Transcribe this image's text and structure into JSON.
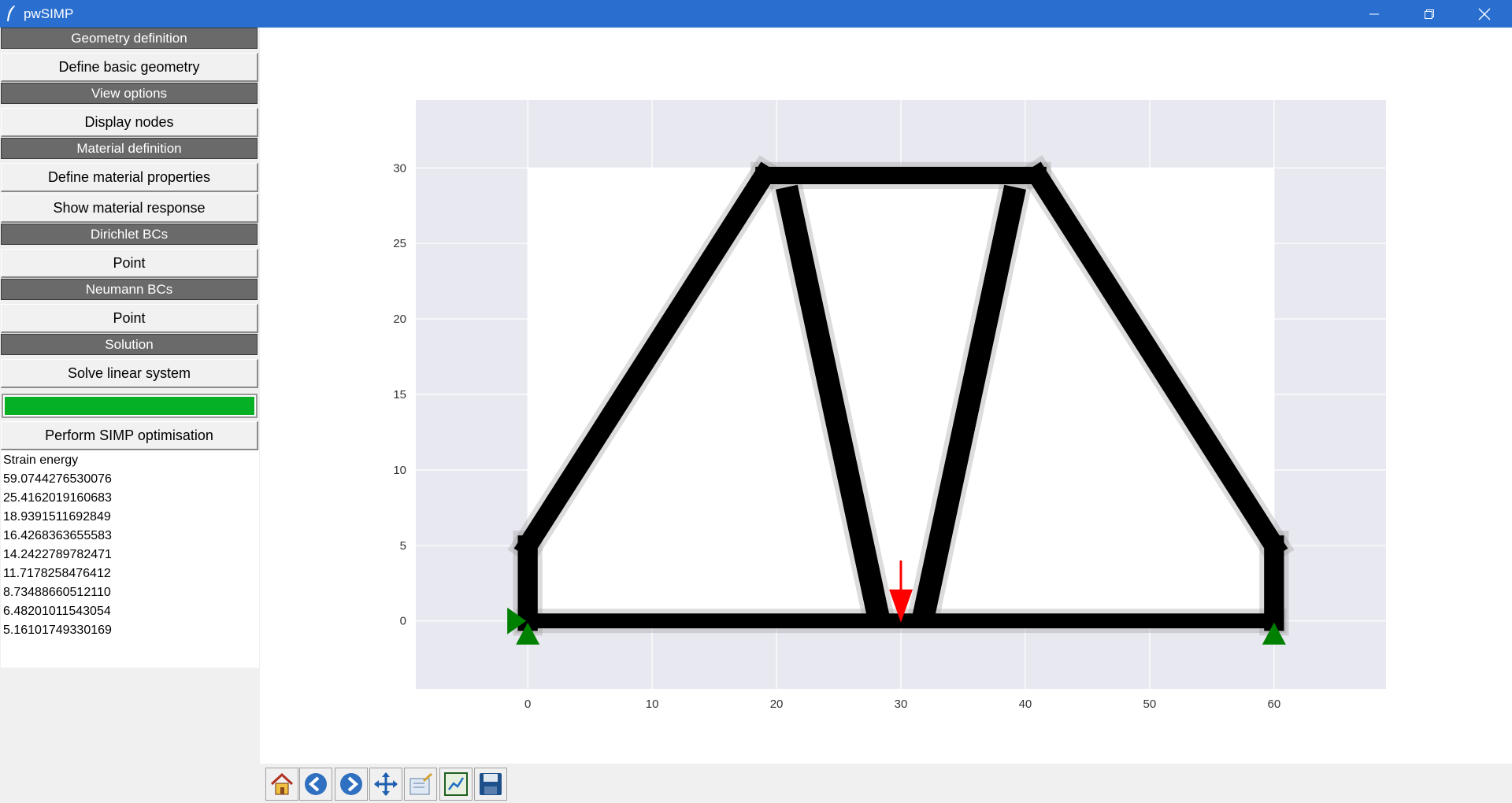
{
  "window": {
    "title": "pwSIMP"
  },
  "panel": {
    "items": [
      {
        "type": "header",
        "label": "Geometry definition"
      },
      {
        "type": "button",
        "label": "Define basic geometry"
      },
      {
        "type": "header",
        "label": "View options"
      },
      {
        "type": "button",
        "label": "Display nodes"
      },
      {
        "type": "header",
        "label": "Material definition"
      },
      {
        "type": "button",
        "label": "Define material properties"
      },
      {
        "type": "button",
        "label": "Show material response"
      },
      {
        "type": "header",
        "label": "Dirichlet BCs"
      },
      {
        "type": "button",
        "label": "Point"
      },
      {
        "type": "header",
        "label": "Neumann BCs"
      },
      {
        "type": "button",
        "label": "Point"
      },
      {
        "type": "header",
        "label": "Solution"
      },
      {
        "type": "button",
        "label": "Solve linear system"
      }
    ],
    "progress": 1.0,
    "simp_button": "Perform SIMP optimisation"
  },
  "log": {
    "title": "Strain energy",
    "values": [
      "59.0744276530076",
      "25.4162019160683",
      "18.9391511692849",
      "16.4268363655583",
      "14.2422789782471",
      "11.7178258476412",
      "8.73488660512110",
      "6.48201011543054",
      "5.16101749330169"
    ]
  },
  "chart_data": {
    "type": "heatmap",
    "domain": {
      "x": [
        0,
        60
      ],
      "y": [
        0,
        30
      ]
    },
    "xlim": [
      -9,
      69
    ],
    "ylim": [
      -4.5,
      34.5
    ],
    "xticks": [
      0,
      10,
      20,
      30,
      40,
      50,
      60
    ],
    "yticks": [
      0,
      5,
      10,
      15,
      20,
      25,
      30
    ],
    "grid": true,
    "background": "#e8e8f0",
    "structure_color": "#000000",
    "members": [
      {
        "from": [
          0,
          0
        ],
        "to": [
          60,
          0
        ],
        "thickness": 1.2
      },
      {
        "from": [
          0,
          5
        ],
        "to": [
          19,
          29.5
        ],
        "thickness": 1.6
      },
      {
        "from": [
          60,
          5
        ],
        "to": [
          41,
          29.5
        ],
        "thickness": 1.6
      },
      {
        "from": [
          19,
          29.5
        ],
        "to": [
          41,
          29.5
        ],
        "thickness": 1.4
      },
      {
        "from": [
          21,
          28
        ],
        "to": [
          28,
          1
        ],
        "thickness": 1.8
      },
      {
        "from": [
          39,
          28
        ],
        "to": [
          32,
          1
        ],
        "thickness": 1.8
      },
      {
        "from": [
          0,
          0
        ],
        "to": [
          0,
          5
        ],
        "thickness": 1.6
      },
      {
        "from": [
          60,
          0
        ],
        "to": [
          60,
          5
        ],
        "thickness": 1.6
      }
    ],
    "supports": [
      {
        "x": 0,
        "y": 0,
        "type": "roller-x",
        "color": "#008000"
      },
      {
        "x": 0,
        "y": 0,
        "type": "pin",
        "color": "#008000"
      },
      {
        "x": 60,
        "y": 0,
        "type": "pin",
        "color": "#008000"
      }
    ],
    "loads": [
      {
        "x": 30,
        "y": 4,
        "dx": 0,
        "dy": -4,
        "color": "#ff0000"
      }
    ]
  },
  "toolbar": {
    "buttons": [
      "home-icon",
      "back-icon",
      "forward-icon",
      "pan-icon",
      "configure-subplots-icon",
      "zoom-icon",
      "save-icon"
    ]
  }
}
